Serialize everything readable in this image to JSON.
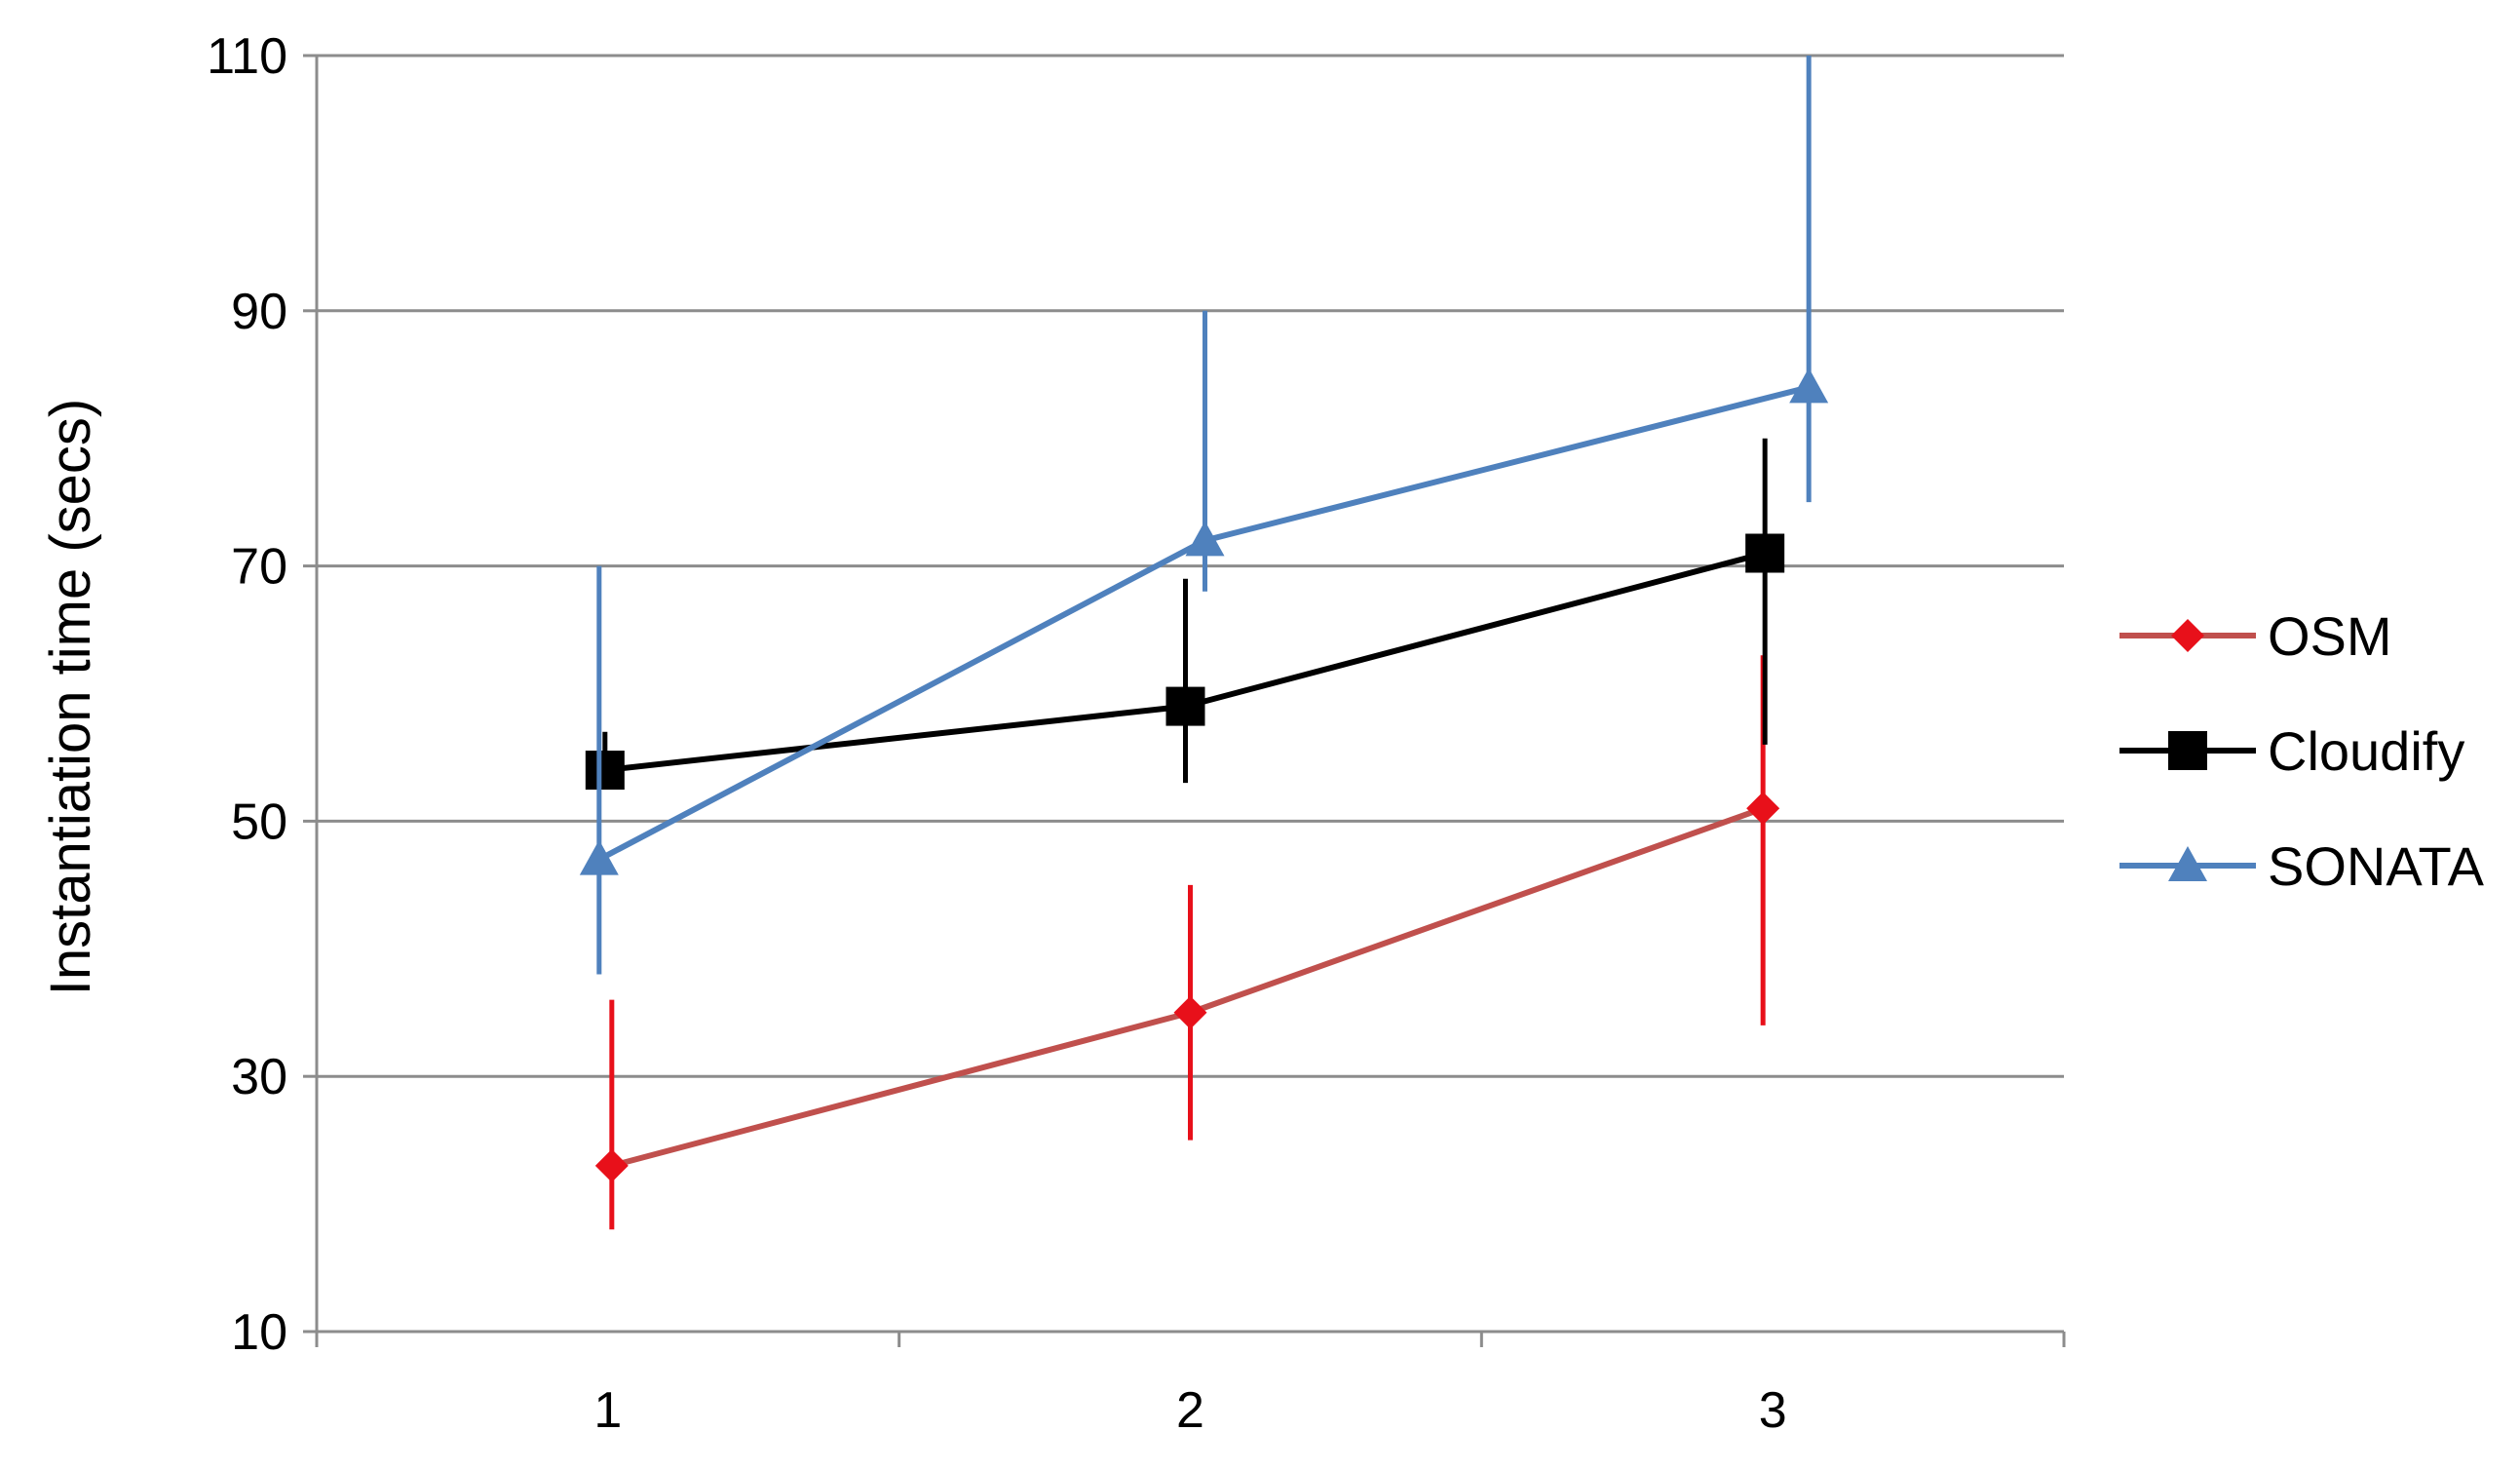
{
  "chart_data": {
    "type": "line",
    "title": "",
    "xlabel": "",
    "ylabel": "Instantiation time (secs)",
    "ylim": [
      10,
      110
    ],
    "yticks": [
      10,
      30,
      50,
      70,
      90,
      110
    ],
    "categories": [
      "1",
      "2",
      "3"
    ],
    "grid": "horizontal",
    "legend_position": "right",
    "series": [
      {
        "name": "OSM",
        "color": "#C0504D",
        "error_color": "#E8101A",
        "marker": "diamond",
        "marker_color": "#E8101A",
        "values": [
          23,
          35,
          51
        ],
        "error_low": [
          18,
          25,
          34
        ],
        "error_high": [
          36,
          45,
          63
        ]
      },
      {
        "name": "Cloudify",
        "color": "#000000",
        "error_color": "#000000",
        "marker": "square",
        "marker_color": "#000000",
        "values": [
          54,
          59,
          71
        ],
        "error_low": [
          54,
          53,
          56
        ],
        "error_high": [
          57,
          69,
          80
        ]
      },
      {
        "name": "SONATA",
        "color": "#4F81BD",
        "error_color": "#4F81BD",
        "marker": "triangle",
        "marker_color": "#4F81BD",
        "values": [
          47,
          72,
          84
        ],
        "error_low": [
          38,
          68,
          75
        ],
        "error_high": [
          70,
          90,
          110
        ]
      }
    ]
  }
}
